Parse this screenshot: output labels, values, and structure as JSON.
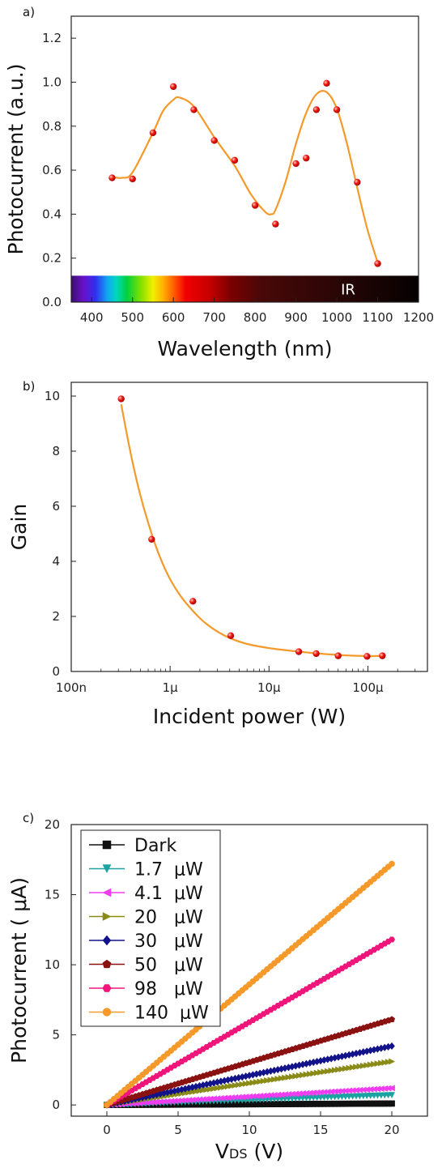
{
  "chart_data": [
    {
      "panel": "a)",
      "type": "scatter",
      "xlabel": "Wavelength (nm)",
      "ylabel": "Photocurrent (a.u.)",
      "xlim": [
        350,
        1200
      ],
      "ylim": [
        0,
        1.3
      ],
      "xticks": [
        400,
        500,
        600,
        700,
        800,
        900,
        1000,
        1100,
        1200
      ],
      "yticks": [
        0.0,
        0.2,
        0.4,
        0.6,
        0.8,
        1.0,
        1.2
      ],
      "band_label": "IR",
      "points": {
        "x": [
          450,
          500,
          550,
          600,
          650,
          700,
          750,
          800,
          850,
          900,
          925,
          950,
          975,
          1000,
          1050,
          1100
        ],
        "y": [
          0.565,
          0.56,
          0.77,
          0.98,
          0.875,
          0.735,
          0.645,
          0.44,
          0.355,
          0.63,
          0.655,
          0.875,
          0.995,
          0.875,
          0.545,
          0.175
        ]
      },
      "fit": {
        "x": [
          450,
          475,
          500,
          550,
          575,
          600,
          615,
          650,
          700,
          750,
          790,
          825,
          840,
          850,
          875,
          900,
          925,
          950,
          975,
          1000,
          1025,
          1050,
          1075,
          1100
        ],
        "y": [
          0.57,
          0.565,
          0.59,
          0.77,
          0.87,
          0.92,
          0.93,
          0.89,
          0.75,
          0.62,
          0.49,
          0.41,
          0.4,
          0.42,
          0.55,
          0.72,
          0.86,
          0.945,
          0.955,
          0.88,
          0.72,
          0.52,
          0.33,
          0.18
        ]
      },
      "colors": {
        "points": "#e8130f",
        "fit": "#f39a2a"
      }
    },
    {
      "panel": "b)",
      "type": "scatter",
      "xlabel": "Incident power (W)",
      "ylabel": "Gain",
      "xscale": "log",
      "xlim": [
        1e-07,
        0.0004
      ],
      "ylim": [
        0,
        10.5
      ],
      "xticks": [
        "100n",
        "1μ",
        "10μ",
        "100μ"
      ],
      "yticks": [
        0,
        2,
        4,
        6,
        8,
        10
      ],
      "points": {
        "x": [
          3.2e-07,
          6.5e-07,
          1.7e-06,
          4.1e-06,
          2e-05,
          3e-05,
          5e-05,
          9.8e-05,
          0.00014
        ],
        "y": [
          9.9,
          4.8,
          2.55,
          1.3,
          0.72,
          0.65,
          0.57,
          0.55,
          0.57
        ]
      },
      "fit": {
        "x": [
          3.2e-07,
          4e-07,
          5e-07,
          6.5e-07,
          8e-07,
          1e-06,
          1.3e-06,
          1.7e-06,
          2.2e-06,
          3e-06,
          4.1e-06,
          6e-06,
          1e-05,
          2e-05,
          3e-05,
          5e-05,
          9.8e-05,
          0.00014
        ],
        "y": [
          9.7,
          7.9,
          6.4,
          5.0,
          4.1,
          3.35,
          2.7,
          2.2,
          1.8,
          1.45,
          1.2,
          1.0,
          0.85,
          0.72,
          0.66,
          0.6,
          0.56,
          0.57
        ]
      },
      "colors": {
        "points": "#e8130f",
        "fit": "#f39a2a"
      }
    },
    {
      "panel": "c)",
      "type": "line",
      "xlabel_main": "V",
      "xlabel_sub": "DS",
      "xlabel_unit": " (V)",
      "ylabel": "Photocurrent ( μA)",
      "xlim": [
        -2.5,
        22.5
      ],
      "ylim": [
        -0.8,
        20
      ],
      "xticks": [
        0,
        5,
        10,
        15,
        20
      ],
      "yticks": [
        0,
        5,
        10,
        15,
        20
      ],
      "series": [
        {
          "name": "Dark",
          "end": 0.1,
          "color": "#111111",
          "marker": "square"
        },
        {
          "name": "1.7  μW",
          "end": 0.7,
          "color": "#1aa3a3",
          "marker": "tri-down"
        },
        {
          "name": "4.1  μW",
          "end": 1.2,
          "color": "#f03cf0",
          "marker": "tri-left"
        },
        {
          "name": "20   μW",
          "end": 3.1,
          "color": "#8a8a16",
          "marker": "tri-right"
        },
        {
          "name": "30   μW",
          "end": 4.2,
          "color": "#12128a",
          "marker": "diamond"
        },
        {
          "name": "50   μW",
          "end": 6.1,
          "color": "#8b1010",
          "marker": "pentagon"
        },
        {
          "name": "98   μW",
          "end": 11.8,
          "color": "#f0157a",
          "marker": "hexagon"
        },
        {
          "name": "140  μW",
          "end": 17.2,
          "color": "#f5992a",
          "marker": "circle"
        }
      ]
    }
  ]
}
